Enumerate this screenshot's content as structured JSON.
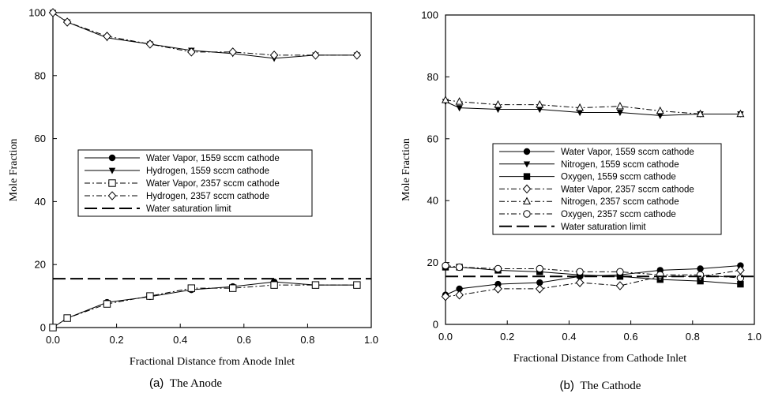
{
  "chart_data": [
    {
      "type": "line",
      "caption_letter": "(a)",
      "caption_title": "The Anode",
      "xlabel": "Fractional Distance from Anode Inlet",
      "ylabel": "Mole Fraction",
      "xlim": [
        0.0,
        1.0
      ],
      "ylim": [
        0,
        100
      ],
      "xticks": [
        "0.0",
        "0.2",
        "0.4",
        "0.6",
        "0.8",
        "1.0"
      ],
      "yticks": [
        "0",
        "20",
        "40",
        "60",
        "80",
        "100"
      ],
      "legend_position": "center",
      "series": [
        {
          "name": "Water Vapor, 1559 sccm cathode",
          "marker": "circle-filled",
          "dash": "solid",
          "x": [
            0.0,
            0.045,
            0.17,
            0.305,
            0.435,
            0.565,
            0.695,
            0.825,
            0.955
          ],
          "y": [
            0,
            3,
            8,
            9.8,
            12,
            13,
            14.5,
            13.5,
            13.5
          ]
        },
        {
          "name": "Hydrogen, 1559 sccm cathode",
          "marker": "triangle-down-filled",
          "dash": "solid",
          "x": [
            0.0,
            0.045,
            0.17,
            0.305,
            0.435,
            0.565,
            0.695,
            0.825,
            0.955
          ],
          "y": [
            100,
            97,
            92,
            90,
            88,
            87,
            85.5,
            86.5,
            86.5
          ]
        },
        {
          "name": "Water Vapor, 2357 sccm cathode",
          "marker": "square-open",
          "dash": "dashdot",
          "x": [
            0.0,
            0.045,
            0.17,
            0.305,
            0.435,
            0.565,
            0.695,
            0.825,
            0.955
          ],
          "y": [
            0,
            3,
            7.5,
            10,
            12.5,
            12.5,
            13.5,
            13.5,
            13.5
          ]
        },
        {
          "name": "Hydrogen, 2357 sccm cathode",
          "marker": "diamond-open",
          "dash": "dashdot",
          "x": [
            0.0,
            0.045,
            0.17,
            0.305,
            0.435,
            0.565,
            0.695,
            0.825,
            0.955
          ],
          "y": [
            100,
            97,
            92.5,
            90,
            87.5,
            87.5,
            86.5,
            86.5,
            86.5
          ]
        },
        {
          "name": "Water saturation limit",
          "marker": "none",
          "dash": "longdash",
          "x": [
            0.0,
            1.0
          ],
          "y": [
            15.5,
            15.5
          ]
        }
      ]
    },
    {
      "type": "line",
      "caption_letter": "(b)",
      "caption_title": "The Cathode",
      "xlabel": "Fractional Distance from Cathode Inlet",
      "ylabel": "Mole Fraction",
      "xlim": [
        0.0,
        1.0
      ],
      "ylim": [
        0,
        100
      ],
      "xticks": [
        "0.0",
        "0.2",
        "0.4",
        "0.6",
        "0.8",
        "1.0"
      ],
      "yticks": [
        "0",
        "20",
        "40",
        "60",
        "80",
        "100"
      ],
      "legend_position": "center",
      "series": [
        {
          "name": "Water Vapor, 1559 sccm cathode",
          "marker": "circle-filled",
          "dash": "solid",
          "x": [
            0.0,
            0.045,
            0.17,
            0.305,
            0.435,
            0.565,
            0.695,
            0.825,
            0.955
          ],
          "y": [
            9.5,
            11.5,
            13,
            13.5,
            15.5,
            16,
            17.5,
            18,
            19
          ]
        },
        {
          "name": "Nitrogen, 1559 sccm cathode",
          "marker": "triangle-down-filled",
          "dash": "solid",
          "x": [
            0.0,
            0.045,
            0.17,
            0.305,
            0.435,
            0.565,
            0.695,
            0.825,
            0.955
          ],
          "y": [
            72,
            70,
            69.5,
            69.5,
            68.5,
            68.5,
            67.5,
            68,
            68
          ]
        },
        {
          "name": "Oxygen, 1559 sccm cathode",
          "marker": "square-filled",
          "dash": "solid",
          "x": [
            0.0,
            0.045,
            0.17,
            0.305,
            0.435,
            0.565,
            0.695,
            0.825,
            0.955
          ],
          "y": [
            18.5,
            18.5,
            17.5,
            17,
            16,
            15.5,
            14.5,
            14,
            13
          ]
        },
        {
          "name": "Water Vapor, 2357 sccm cathode",
          "marker": "diamond-open",
          "dash": "dashdot",
          "x": [
            0.0,
            0.045,
            0.17,
            0.305,
            0.435,
            0.565,
            0.695,
            0.825,
            0.955
          ],
          "y": [
            9,
            9.5,
            11.5,
            11.5,
            13.5,
            12.5,
            15.5,
            15.5,
            17.5
          ]
        },
        {
          "name": "Nitrogen, 2357 sccm cathode",
          "marker": "triangle-up-open",
          "dash": "dashdot",
          "x": [
            0.0,
            0.045,
            0.17,
            0.305,
            0.435,
            0.565,
            0.695,
            0.825,
            0.955
          ],
          "y": [
            72.5,
            72,
            71,
            71,
            70,
            70.5,
            69,
            68,
            68
          ]
        },
        {
          "name": "Oxygen, 2357 sccm cathode",
          "marker": "circle-open",
          "dash": "dashdot",
          "x": [
            0.0,
            0.045,
            0.17,
            0.305,
            0.435,
            0.565,
            0.695,
            0.825,
            0.955
          ],
          "y": [
            19,
            18.5,
            18,
            18,
            17,
            17,
            16,
            16,
            15
          ]
        },
        {
          "name": "Water saturation limit",
          "marker": "none",
          "dash": "longdash",
          "x": [
            0.0,
            1.0
          ],
          "y": [
            15.5,
            15.5
          ]
        }
      ]
    }
  ]
}
